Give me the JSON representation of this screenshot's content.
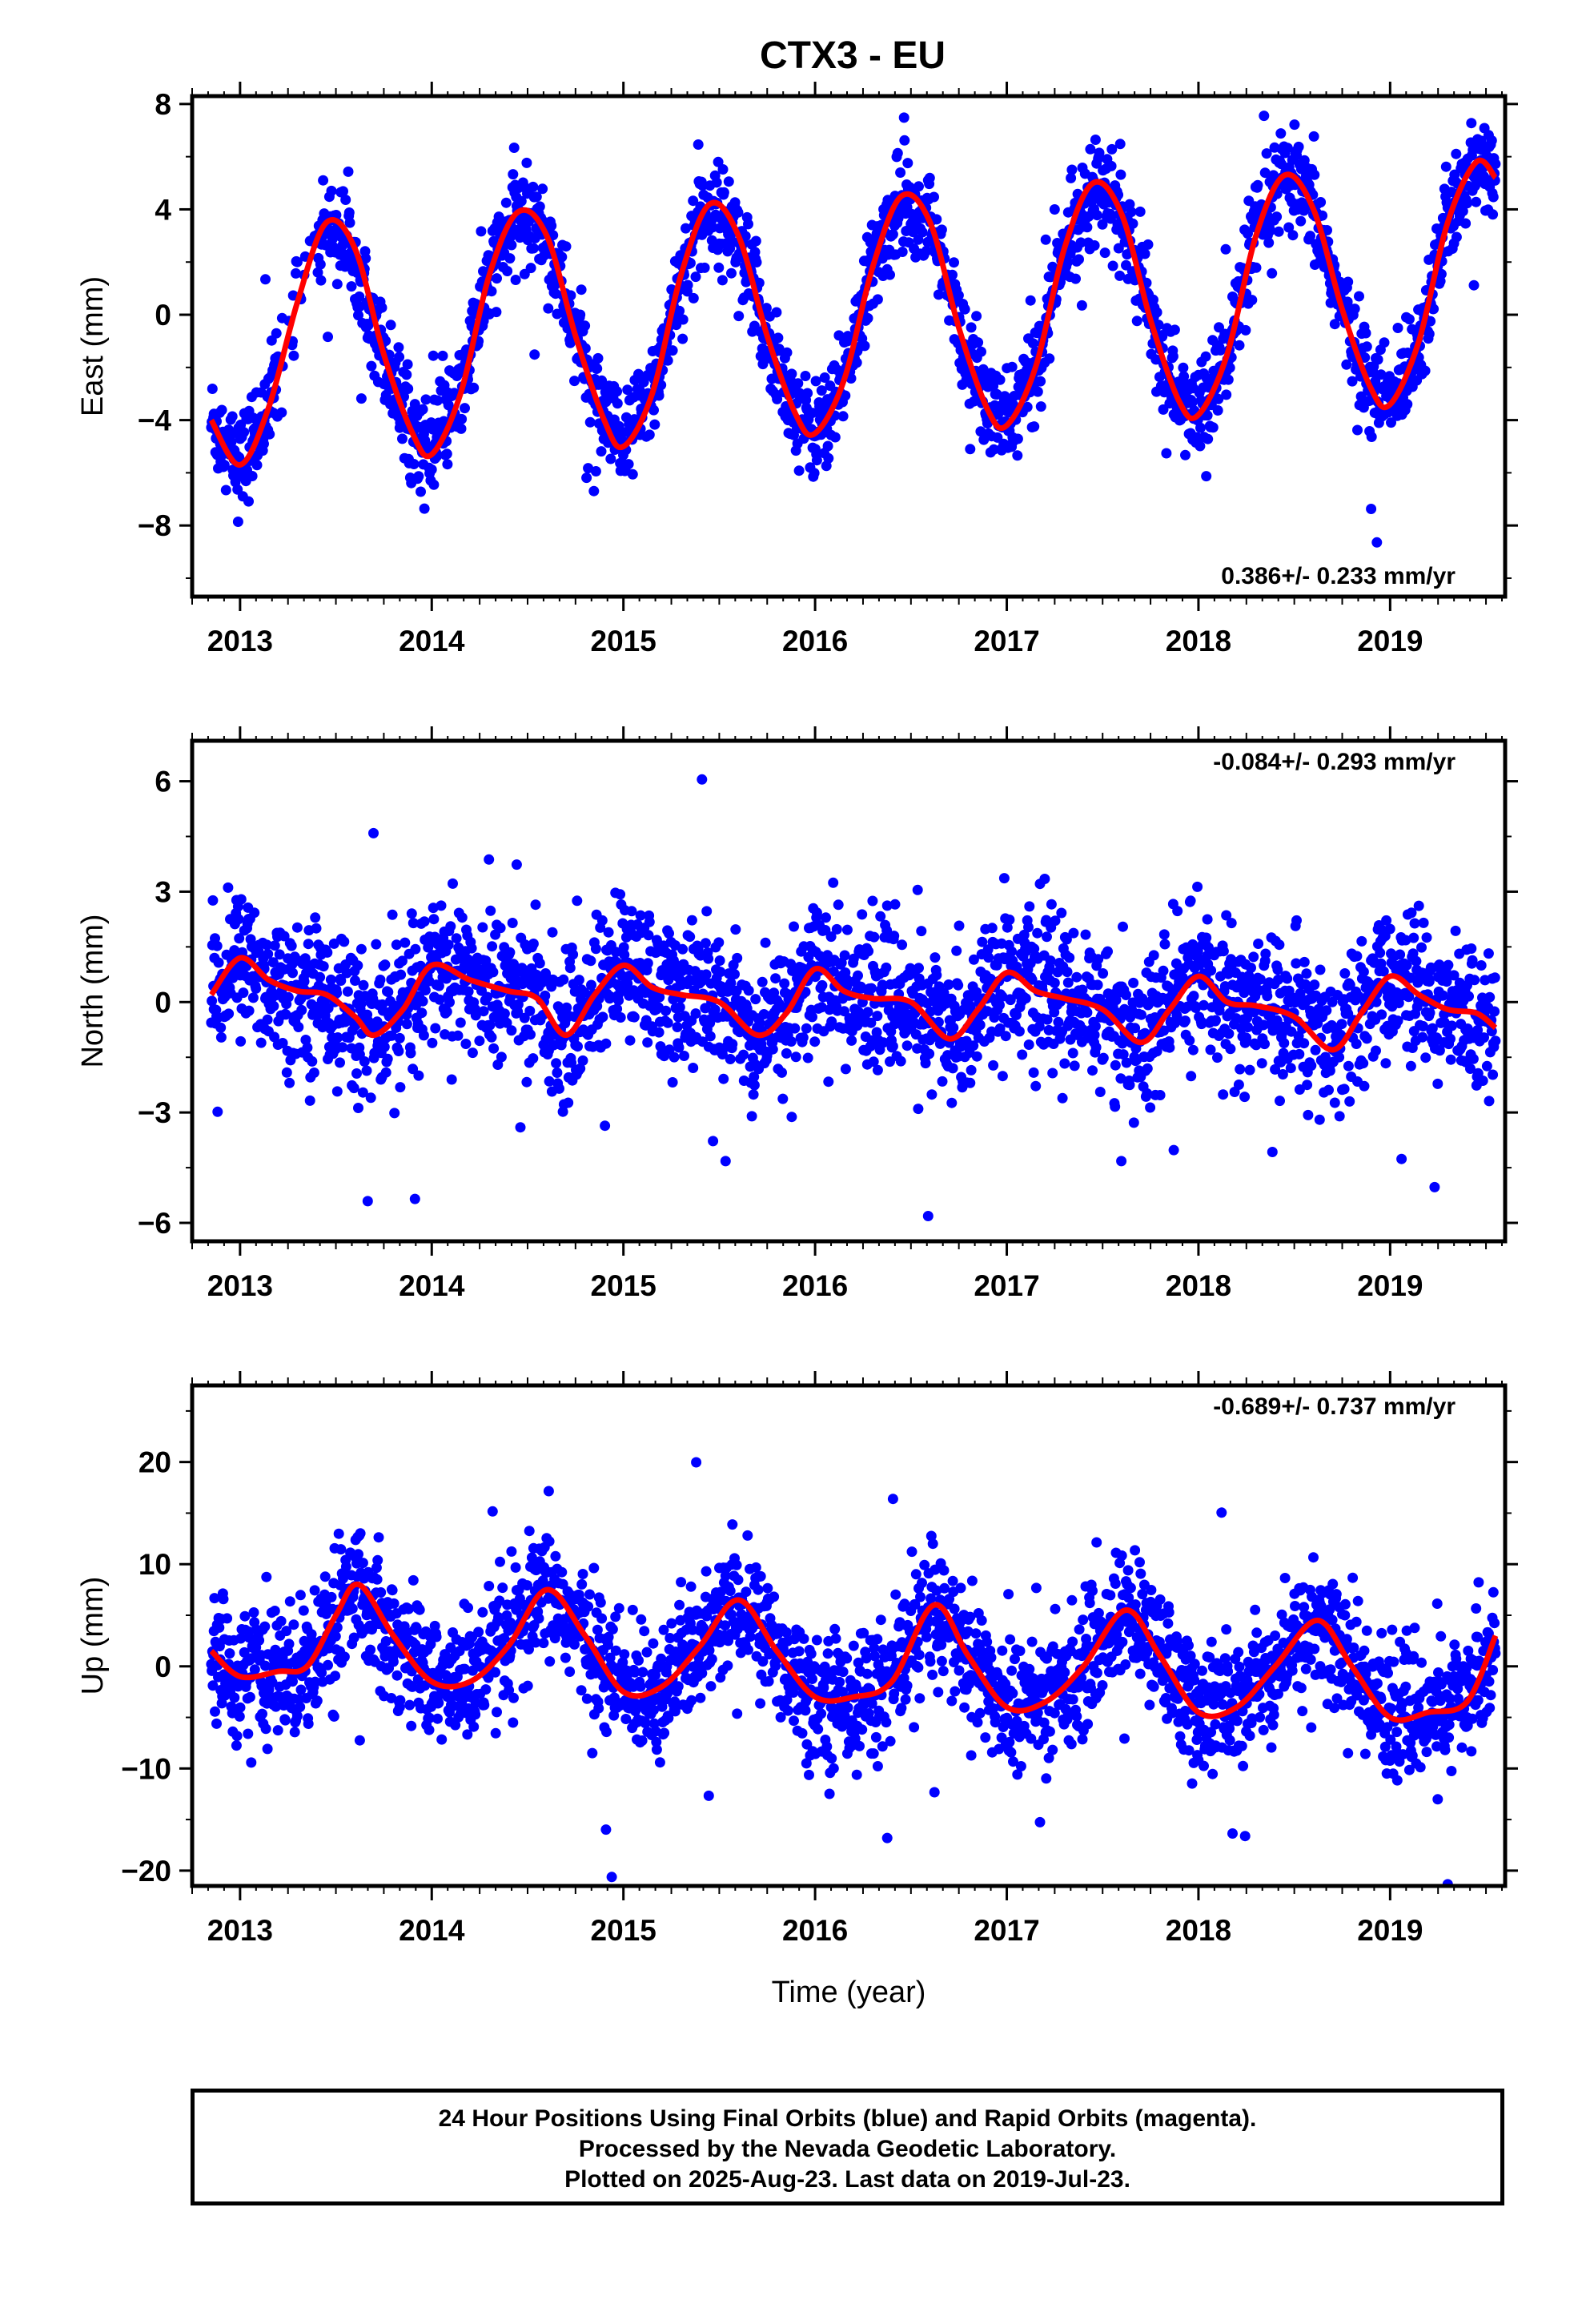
{
  "title": "CTX3 - EU",
  "colors": {
    "points": "#0000ff",
    "fit": "#ff0000",
    "frame": "#000000"
  },
  "chart_data": [
    {
      "type": "scatter",
      "key": "east",
      "ylabel": "East (mm)",
      "xlabel": "",
      "xlim": [
        2012.75,
        2019.6
      ],
      "ylim": [
        -10.7,
        8.3
      ],
      "yticks": [
        -8,
        -4,
        0,
        4,
        8
      ],
      "ytick_labels": [
        "−8",
        "−4",
        "0",
        "4",
        "8"
      ],
      "xticks": [
        2013,
        2014,
        2015,
        2016,
        2017,
        2018,
        2019
      ],
      "xtick_labels": [
        "2013",
        "2014",
        "2015",
        "2016",
        "2017",
        "2018",
        "2019"
      ],
      "rate_text": "0.386+/- 0.233 mm/yr",
      "rate_position": "bottom-right",
      "fit_curve": {
        "x": [
          2012.85,
          2013.0,
          2013.15,
          2013.3,
          2013.45,
          2013.6,
          2013.75,
          2013.9,
          2014.0,
          2014.15,
          2014.3,
          2014.45,
          2014.6,
          2014.75,
          2014.9,
          2015.0,
          2015.15,
          2015.3,
          2015.45,
          2015.6,
          2015.75,
          2015.9,
          2016.0,
          2016.15,
          2016.3,
          2016.45,
          2016.6,
          2016.75,
          2016.9,
          2017.0,
          2017.15,
          2017.3,
          2017.45,
          2017.6,
          2017.75,
          2017.9,
          2018.0,
          2018.15,
          2018.3,
          2018.45,
          2018.6,
          2018.75,
          2018.9,
          2019.0,
          2019.15,
          2019.3,
          2019.45,
          2019.55
        ],
        "y": [
          -4.0,
          -5.7,
          -3.5,
          0.5,
          3.5,
          2.5,
          -1.5,
          -4.5,
          -5.3,
          -3.0,
          1.5,
          3.9,
          3.0,
          -0.8,
          -4.0,
          -5.0,
          -3.0,
          1.5,
          4.2,
          3.0,
          -0.8,
          -3.8,
          -4.5,
          -2.5,
          1.8,
          4.5,
          3.5,
          -0.5,
          -3.6,
          -4.2,
          -2.0,
          2.5,
          5.0,
          3.8,
          -0.2,
          -3.3,
          -3.8,
          -1.5,
          3.0,
          5.3,
          4.0,
          0.2,
          -2.8,
          -3.4,
          -1.0,
          3.5,
          5.8,
          5.2
        ]
      }
    },
    {
      "type": "scatter",
      "key": "north",
      "ylabel": "North (mm)",
      "xlabel": "",
      "xlim": [
        2012.75,
        2019.6
      ],
      "ylim": [
        -6.5,
        7.1
      ],
      "yticks": [
        -6,
        -3,
        0,
        3,
        6
      ],
      "ytick_labels": [
        "−6",
        "−3",
        "0",
        "3",
        "6"
      ],
      "xticks": [
        2013,
        2014,
        2015,
        2016,
        2017,
        2018,
        2019
      ],
      "xtick_labels": [
        "2013",
        "2014",
        "2015",
        "2016",
        "2017",
        "2018",
        "2019"
      ],
      "rate_text": "-0.084+/- 0.293 mm/yr",
      "rate_position": "top-right",
      "fit_curve": {
        "x": [
          2012.85,
          2013.0,
          2013.15,
          2013.3,
          2013.45,
          2013.6,
          2013.7,
          2013.85,
          2014.0,
          2014.2,
          2014.4,
          2014.55,
          2014.7,
          2014.85,
          2015.0,
          2015.15,
          2015.3,
          2015.5,
          2015.7,
          2015.85,
          2016.0,
          2016.15,
          2016.3,
          2016.5,
          2016.7,
          2016.85,
          2017.0,
          2017.15,
          2017.3,
          2017.5,
          2017.7,
          2017.85,
          2018.0,
          2018.15,
          2018.3,
          2018.5,
          2018.7,
          2018.85,
          2019.0,
          2019.15,
          2019.3,
          2019.45,
          2019.55
        ],
        "y": [
          0.2,
          1.2,
          0.6,
          0.3,
          0.2,
          -0.4,
          -0.9,
          -0.2,
          1.0,
          0.6,
          0.3,
          0.1,
          -0.9,
          0.2,
          1.0,
          0.4,
          0.2,
          0.0,
          -0.9,
          -0.3,
          0.9,
          0.3,
          0.1,
          0.0,
          -1.0,
          -0.2,
          0.8,
          0.3,
          0.1,
          -0.2,
          -1.1,
          -0.2,
          0.7,
          0.0,
          -0.1,
          -0.4,
          -1.3,
          -0.3,
          0.7,
          0.2,
          -0.2,
          -0.3,
          -0.7
        ]
      }
    },
    {
      "type": "scatter",
      "key": "up",
      "ylabel": "Up (mm)",
      "xlabel": "Time (year)",
      "xlim": [
        2012.75,
        2019.6
      ],
      "ylim": [
        -21.5,
        27.5
      ],
      "yticks": [
        -20,
        -10,
        0,
        10,
        20
      ],
      "ytick_labels": [
        "−20",
        "−10",
        "0",
        "10",
        "20"
      ],
      "xticks": [
        2013,
        2014,
        2015,
        2016,
        2017,
        2018,
        2019
      ],
      "xtick_labels": [
        "2013",
        "2014",
        "2015",
        "2016",
        "2017",
        "2018",
        "2019"
      ],
      "rate_text": "-0.689+/- 0.737 mm/yr",
      "rate_position": "top-right",
      "fit_curve": {
        "x": [
          2012.85,
          2013.0,
          2013.2,
          2013.35,
          2013.5,
          2013.62,
          2013.8,
          2014.0,
          2014.2,
          2014.4,
          2014.6,
          2014.8,
          2015.0,
          2015.2,
          2015.4,
          2015.6,
          2015.8,
          2016.0,
          2016.2,
          2016.4,
          2016.62,
          2016.8,
          2017.0,
          2017.2,
          2017.4,
          2017.62,
          2017.8,
          2018.0,
          2018.2,
          2018.4,
          2018.62,
          2018.8,
          2019.0,
          2019.2,
          2019.4,
          2019.55
        ],
        "y": [
          1.5,
          -1.0,
          -0.5,
          0.0,
          5.0,
          8.0,
          3.0,
          -1.5,
          -1.5,
          2.0,
          7.5,
          3.0,
          -2.5,
          -2.0,
          2.0,
          6.5,
          1.5,
          -3.0,
          -3.0,
          -1.5,
          6.0,
          1.0,
          -4.0,
          -3.5,
          0.0,
          5.5,
          1.0,
          -4.5,
          -4.0,
          0.0,
          4.5,
          0.0,
          -5.0,
          -4.5,
          -3.5,
          3.0
        ]
      }
    }
  ],
  "footer": {
    "line1": "24 Hour Positions Using Final Orbits (blue) and Rapid Orbits (magenta).",
    "line2": "Processed by the Nevada Geodetic Laboratory.",
    "line3": "Plotted on 2025-Aug-23. Last data on 2019-Jul-23."
  }
}
